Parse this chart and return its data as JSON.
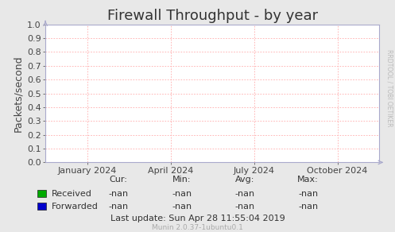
{
  "title": "Firewall Throughput - by year",
  "ylabel": "Packets/second",
  "background_color": "#e8e8e8",
  "plot_bg_color": "#ffffff",
  "grid_color": "#ffaaaa",
  "border_color": "#aaaacc",
  "ylim": [
    0.0,
    1.0
  ],
  "yticks": [
    0.0,
    0.1,
    0.2,
    0.3,
    0.4,
    0.5,
    0.6,
    0.7,
    0.8,
    0.9,
    1.0
  ],
  "xtick_labels": [
    "January 2024",
    "April 2024",
    "July 2024",
    "October 2024"
  ],
  "xtick_positions": [
    0.125,
    0.375,
    0.625,
    0.875
  ],
  "legend_items": [
    {
      "label": "Received",
      "color": "#00aa00"
    },
    {
      "label": "Forwarded",
      "color": "#0000cc"
    }
  ],
  "stats_headers": [
    "Cur:",
    "Min:",
    "Avg:",
    "Max:"
  ],
  "stats_rows": [
    [
      "-nan",
      "-nan",
      "-nan",
      "-nan"
    ],
    [
      "-nan",
      "-nan",
      "-nan",
      "-nan"
    ]
  ],
  "last_update": "Last update: Sun Apr 28 11:55:04 2019",
  "watermark": "Munin 2.0.37-1ubuntu0.1",
  "rrdtool_label": "RRDTOOL / TOBI OETIKER",
  "title_fontsize": 13,
  "axis_label_fontsize": 9,
  "tick_fontsize": 8,
  "stats_fontsize": 8,
  "watermark_fontsize": 6.5
}
